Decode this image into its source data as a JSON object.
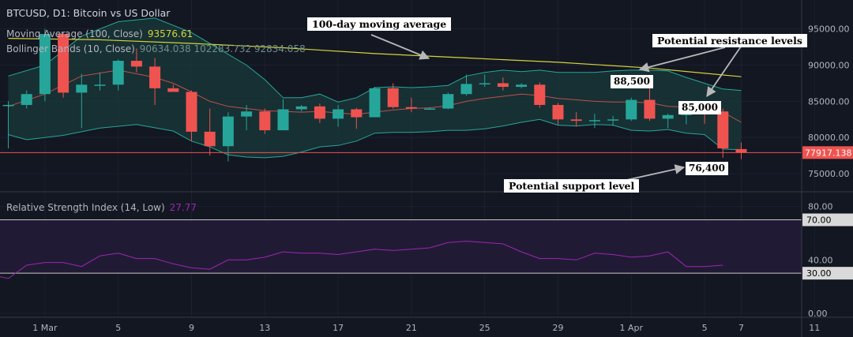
{
  "header": {
    "symbol_title": "BTCUSD, D1: Bitcoin vs US Dollar"
  },
  "indicators": {
    "ma": {
      "label": "Moving Average (100, Close)",
      "value": "93576.61"
    },
    "bb": {
      "label": "Bollinger Bands (10, Close)",
      "values": "90634.038  102283.732  92834.058"
    },
    "rsi": {
      "label": "Relative Strength Index (14, Low)",
      "value": "27.77"
    }
  },
  "annotations": {
    "ma100": "100-day moving average",
    "resistance": "Potential resistance levels",
    "support": "Potential support level",
    "r1": "88,500",
    "r2": "85,000",
    "s1": "76,400"
  },
  "current_price_label": "77917.138",
  "colors": {
    "up": "#26a69a",
    "down": "#ef5350",
    "ma": "#d4d43a",
    "bb_basis": "#c0504d",
    "bb_band": "#26a69a",
    "bb_fill": "#1a3a3a",
    "rsi_line": "#9c27b0",
    "rsi_band_fill": "#211a35",
    "price_line": "#ef5350"
  },
  "chart_data": {
    "type": "candlestick",
    "price_axis": {
      "range": [
        72500,
        99000
      ],
      "ticks": [
        "95000.00",
        "90000.00",
        "85000.00",
        "80000.00",
        "75000.00"
      ],
      "tick_values": [
        95000,
        90000,
        85000,
        80000,
        75000
      ]
    },
    "rsi_axis": {
      "range": [
        -3,
        91
      ],
      "ticks": [
        "80.00",
        "40.00",
        "0.00"
      ],
      "tick_values": [
        80,
        40,
        0
      ],
      "levels": [
        70,
        30
      ],
      "level_labels": [
        "70.00",
        "30.00"
      ]
    },
    "x_axis": {
      "labels": [
        "1 Mar",
        "5",
        "9",
        "13",
        "17",
        "21",
        "25",
        "29",
        "1 Apr",
        "5",
        "7",
        "11"
      ],
      "label_index": [
        2,
        6,
        10,
        14,
        18,
        22,
        26,
        30,
        34,
        38,
        40,
        44
      ],
      "last_index": 47
    },
    "current_price": 77917.138,
    "candles": [
      {
        "i": 0,
        "o": 84500,
        "h": 85000,
        "l": 78500,
        "c": 84500
      },
      {
        "i": 1,
        "o": 84500,
        "h": 86500,
        "l": 84000,
        "c": 86000
      },
      {
        "i": 2,
        "o": 86000,
        "h": 95000,
        "l": 85000,
        "c": 94300
      },
      {
        "i": 3,
        "o": 94300,
        "h": 94500,
        "l": 85500,
        "c": 86200
      },
      {
        "i": 4,
        "o": 86200,
        "h": 88800,
        "l": 81300,
        "c": 87300
      },
      {
        "i": 5,
        "o": 87300,
        "h": 89000,
        "l": 86500,
        "c": 87300
      },
      {
        "i": 6,
        "o": 87300,
        "h": 90800,
        "l": 86500,
        "c": 90600
      },
      {
        "i": 7,
        "o": 90600,
        "h": 92300,
        "l": 89000,
        "c": 89800
      },
      {
        "i": 8,
        "o": 89800,
        "h": 91000,
        "l": 84500,
        "c": 86800
      },
      {
        "i": 9,
        "o": 86800,
        "h": 87300,
        "l": 86300,
        "c": 86300
      },
      {
        "i": 10,
        "o": 86300,
        "h": 86500,
        "l": 79500,
        "c": 80800
      },
      {
        "i": 11,
        "o": 80800,
        "h": 84000,
        "l": 77500,
        "c": 78800
      },
      {
        "i": 12,
        "o": 78800,
        "h": 83500,
        "l": 76700,
        "c": 82900
      },
      {
        "i": 13,
        "o": 82900,
        "h": 84500,
        "l": 81000,
        "c": 83600
      },
      {
        "i": 14,
        "o": 83600,
        "h": 84000,
        "l": 80500,
        "c": 81000
      },
      {
        "i": 15,
        "o": 81000,
        "h": 85300,
        "l": 81000,
        "c": 83900
      },
      {
        "i": 16,
        "o": 83900,
        "h": 84500,
        "l": 83600,
        "c": 84300
      },
      {
        "i": 17,
        "o": 84300,
        "h": 84700,
        "l": 82000,
        "c": 82600
      },
      {
        "i": 18,
        "o": 82600,
        "h": 84500,
        "l": 81500,
        "c": 83900
      },
      {
        "i": 19,
        "o": 83900,
        "h": 84100,
        "l": 81200,
        "c": 82800
      },
      {
        "i": 20,
        "o": 82800,
        "h": 87000,
        "l": 82800,
        "c": 86800
      },
      {
        "i": 21,
        "o": 86800,
        "h": 87500,
        "l": 84000,
        "c": 84200
      },
      {
        "i": 22,
        "o": 84200,
        "h": 85500,
        "l": 83500,
        "c": 84000
      },
      {
        "i": 23,
        "o": 84000,
        "h": 84200,
        "l": 83900,
        "c": 84000
      },
      {
        "i": 24,
        "o": 84000,
        "h": 86200,
        "l": 83900,
        "c": 86000
      },
      {
        "i": 25,
        "o": 86000,
        "h": 88700,
        "l": 85800,
        "c": 87400
      },
      {
        "i": 26,
        "o": 87400,
        "h": 88700,
        "l": 87000,
        "c": 87500
      },
      {
        "i": 27,
        "o": 87500,
        "h": 88300,
        "l": 86500,
        "c": 87000
      },
      {
        "i": 28,
        "o": 87000,
        "h": 87500,
        "l": 86800,
        "c": 87300
      },
      {
        "i": 29,
        "o": 87300,
        "h": 87600,
        "l": 84100,
        "c": 84500
      },
      {
        "i": 30,
        "o": 84500,
        "h": 84800,
        "l": 81800,
        "c": 82500
      },
      {
        "i": 31,
        "o": 82500,
        "h": 83500,
        "l": 81500,
        "c": 82300
      },
      {
        "i": 32,
        "o": 82300,
        "h": 83300,
        "l": 81300,
        "c": 82400
      },
      {
        "i": 33,
        "o": 82400,
        "h": 83000,
        "l": 81600,
        "c": 82500
      },
      {
        "i": 34,
        "o": 82500,
        "h": 85500,
        "l": 82300,
        "c": 85200
      },
      {
        "i": 35,
        "o": 85200,
        "h": 88400,
        "l": 82300,
        "c": 82600
      },
      {
        "i": 36,
        "o": 82600,
        "h": 83300,
        "l": 81300,
        "c": 83100
      },
      {
        "i": 37,
        "o": 83100,
        "h": 84700,
        "l": 81800,
        "c": 83700
      },
      {
        "i": 38,
        "o": 83700,
        "h": 84800,
        "l": 81900,
        "c": 83600
      },
      {
        "i": 39,
        "o": 83600,
        "h": 84000,
        "l": 77200,
        "c": 78500
      },
      {
        "i": 40,
        "o": 78400,
        "h": 79300,
        "l": 77000,
        "c": 77900
      }
    ],
    "ma100": [
      [
        0,
        93700
      ],
      [
        5,
        93500
      ],
      [
        10,
        93000
      ],
      [
        15,
        92400
      ],
      [
        20,
        91600
      ],
      [
        25,
        91000
      ],
      [
        30,
        90400
      ],
      [
        35,
        89600
      ],
      [
        40,
        88400
      ]
    ],
    "bb_upper": [
      [
        0,
        88500
      ],
      [
        2,
        90000
      ],
      [
        4,
        94000
      ],
      [
        6,
        96000
      ],
      [
        8,
        96500
      ],
      [
        10,
        94500
      ],
      [
        12,
        91500
      ],
      [
        13,
        90000
      ],
      [
        14,
        88000
      ],
      [
        15,
        85500
      ],
      [
        16,
        85500
      ],
      [
        17,
        86000
      ],
      [
        18,
        84900
      ],
      [
        19,
        85500
      ],
      [
        20,
        86900
      ],
      [
        21,
        87000
      ],
      [
        22,
        86900
      ],
      [
        23,
        87000
      ],
      [
        24,
        87200
      ],
      [
        25,
        88500
      ],
      [
        26,
        89000
      ],
      [
        27,
        89300
      ],
      [
        28,
        89100
      ],
      [
        29,
        89300
      ],
      [
        30,
        89000
      ],
      [
        31,
        89000
      ],
      [
        32,
        89000
      ],
      [
        33,
        89200
      ],
      [
        34,
        89300
      ],
      [
        35,
        89300
      ],
      [
        36,
        89200
      ],
      [
        37,
        88300
      ],
      [
        38,
        87500
      ],
      [
        39,
        86700
      ],
      [
        40,
        86500
      ]
    ],
    "bb_basis": [
      [
        0,
        84300
      ],
      [
        2,
        86000
      ],
      [
        4,
        88500
      ],
      [
        6,
        89300
      ],
      [
        8,
        88300
      ],
      [
        9,
        87500
      ],
      [
        10,
        86300
      ],
      [
        11,
        85000
      ],
      [
        12,
        84300
      ],
      [
        14,
        83700
      ],
      [
        16,
        83500
      ],
      [
        17,
        83600
      ],
      [
        19,
        83200
      ],
      [
        20,
        83500
      ],
      [
        21,
        83800
      ],
      [
        22,
        84000
      ],
      [
        23,
        84100
      ],
      [
        24,
        84400
      ],
      [
        25,
        85000
      ],
      [
        26,
        85400
      ],
      [
        27,
        85700
      ],
      [
        28,
        86000
      ],
      [
        29,
        85800
      ],
      [
        30,
        85400
      ],
      [
        31,
        85200
      ],
      [
        32,
        85000
      ],
      [
        33,
        84900
      ],
      [
        34,
        84900
      ],
      [
        35,
        84800
      ],
      [
        36,
        84300
      ],
      [
        37,
        84200
      ],
      [
        38,
        84000
      ],
      [
        39,
        83500
      ],
      [
        40,
        82100
      ]
    ],
    "bb_lower": [
      [
        0,
        80400
      ],
      [
        1,
        79700
      ],
      [
        3,
        80300
      ],
      [
        5,
        81300
      ],
      [
        7,
        81800
      ],
      [
        9,
        80900
      ],
      [
        10,
        79500
      ],
      [
        11,
        78700
      ],
      [
        12,
        77600
      ],
      [
        13,
        77300
      ],
      [
        14,
        77200
      ],
      [
        15,
        77400
      ],
      [
        16,
        78000
      ],
      [
        17,
        78700
      ],
      [
        18,
        78900
      ],
      [
        19,
        79500
      ],
      [
        20,
        80600
      ],
      [
        21,
        80700
      ],
      [
        22,
        80700
      ],
      [
        23,
        80800
      ],
      [
        24,
        81000
      ],
      [
        25,
        81000
      ],
      [
        26,
        81200
      ],
      [
        27,
        81600
      ],
      [
        28,
        82100
      ],
      [
        29,
        82500
      ],
      [
        30,
        81700
      ],
      [
        31,
        81600
      ],
      [
        32,
        81800
      ],
      [
        33,
        81700
      ],
      [
        34,
        81000
      ],
      [
        35,
        80900
      ],
      [
        36,
        81100
      ],
      [
        37,
        80600
      ],
      [
        38,
        80400
      ],
      [
        39,
        78400
      ],
      [
        40,
        78300
      ]
    ],
    "rsi": [
      [
        -2,
        29
      ],
      [
        -1,
        29
      ],
      [
        0,
        26
      ],
      [
        1,
        36
      ],
      [
        2,
        38
      ],
      [
        3,
        38
      ],
      [
        4,
        35
      ],
      [
        5,
        43
      ],
      [
        6,
        45
      ],
      [
        7,
        41
      ],
      [
        8,
        41
      ],
      [
        9,
        37
      ],
      [
        10,
        34
      ],
      [
        11,
        33
      ],
      [
        12,
        40
      ],
      [
        13,
        40
      ],
      [
        14,
        42
      ],
      [
        15,
        46
      ],
      [
        16,
        45
      ],
      [
        17,
        45
      ],
      [
        18,
        44
      ],
      [
        19,
        46
      ],
      [
        20,
        48
      ],
      [
        21,
        47
      ],
      [
        22,
        48
      ],
      [
        23,
        49
      ],
      [
        24,
        53
      ],
      [
        25,
        54
      ],
      [
        26,
        53
      ],
      [
        27,
        52
      ],
      [
        28,
        46
      ],
      [
        29,
        41
      ],
      [
        30,
        41
      ],
      [
        31,
        40
      ],
      [
        32,
        45
      ],
      [
        33,
        44
      ],
      [
        34,
        42
      ],
      [
        35,
        43
      ],
      [
        36,
        46
      ],
      [
        37,
        35
      ],
      [
        38,
        35
      ],
      [
        39,
        36
      ]
    ]
  }
}
